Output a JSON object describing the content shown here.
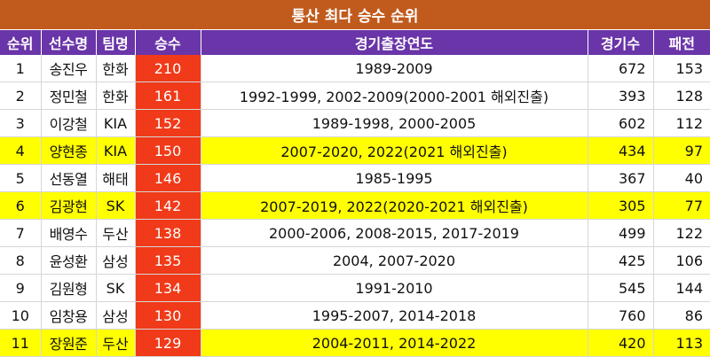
{
  "title": "통산 최다 승수 순위",
  "columns": {
    "rank": "순위",
    "name": "선수명",
    "team": "팀명",
    "wins": "승수",
    "years": "경기출장연도",
    "games": "경기수",
    "losses": "패전"
  },
  "colors": {
    "title_bg": "#c15a1d",
    "header_bg": "#6a35a8",
    "wins_bg": "#f03a19",
    "highlight_bg": "#ffff00"
  },
  "rows": [
    {
      "rank": "1",
      "name": "송진우",
      "team": "한화",
      "wins": "210",
      "years": "1989-2009",
      "games": "672",
      "losses": "153",
      "highlight": false
    },
    {
      "rank": "2",
      "name": "정민철",
      "team": "한화",
      "wins": "161",
      "years": "1992-1999, 2002-2009(2000-2001 해외진출)",
      "games": "393",
      "losses": "128",
      "highlight": false
    },
    {
      "rank": "3",
      "name": "이강철",
      "team": "KIA",
      "wins": "152",
      "years": "1989-1998, 2000-2005",
      "games": "602",
      "losses": "112",
      "highlight": false
    },
    {
      "rank": "4",
      "name": "양현종",
      "team": "KIA",
      "wins": "150",
      "years": "2007-2020, 2022(2021 해외진출)",
      "games": "434",
      "losses": "97",
      "highlight": true
    },
    {
      "rank": "5",
      "name": "선동열",
      "team": "해태",
      "wins": "146",
      "years": "1985-1995",
      "games": "367",
      "losses": "40",
      "highlight": false
    },
    {
      "rank": "6",
      "name": "김광현",
      "team": "SK",
      "wins": "142",
      "years": "2007-2019, 2022(2020-2021 해외진출)",
      "games": "305",
      "losses": "77",
      "highlight": true
    },
    {
      "rank": "7",
      "name": "배영수",
      "team": "두산",
      "wins": "138",
      "years": "2000-2006, 2008-2015, 2017-2019",
      "games": "499",
      "losses": "122",
      "highlight": false
    },
    {
      "rank": "8",
      "name": "윤성환",
      "team": "삼성",
      "wins": "135",
      "years": "2004, 2007-2020",
      "games": "425",
      "losses": "106",
      "highlight": false
    },
    {
      "rank": "9",
      "name": "김원형",
      "team": "SK",
      "wins": "134",
      "years": "1991-2010",
      "games": "545",
      "losses": "144",
      "highlight": false
    },
    {
      "rank": "10",
      "name": "임창용",
      "team": "삼성",
      "wins": "130",
      "years": "1995-2007, 2014-2018",
      "games": "760",
      "losses": "86",
      "highlight": false
    },
    {
      "rank": "11",
      "name": "장원준",
      "team": "두산",
      "wins": "129",
      "years": "2004-2011, 2014-2022",
      "games": "420",
      "losses": "113",
      "highlight": true
    }
  ]
}
